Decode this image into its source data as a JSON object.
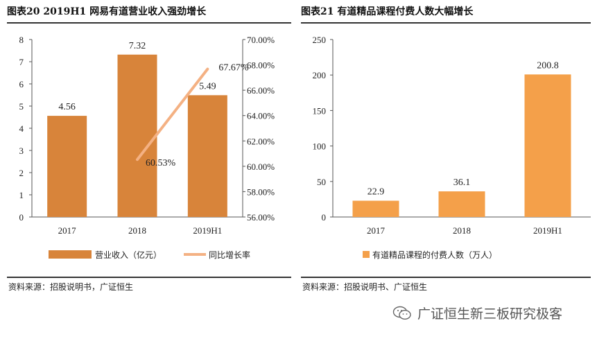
{
  "left_chart": {
    "title": "图表20 2019H1 网易有道营业收入强劲增长",
    "source": "资料来源：招股说明书，广证恒生"
  },
  "right_chart": {
    "title": "图表21 有道精品课程付费人数大幅增长",
    "source": "资料来源：招股说明书、广证恒生"
  },
  "watermark": {
    "text": "广证恒生新三板研究极客",
    "icon": "wechat-icon"
  },
  "colors": {
    "bar_left": "#D8843A",
    "line": "#F4B183",
    "bar_right": "#F4A04A"
  },
  "chart_data": [
    {
      "type": "bar",
      "categories": [
        "2017",
        "2018",
        "2019H1"
      ],
      "series": [
        {
          "name": "营业收入（亿元）",
          "values": [
            4.56,
            7.32,
            5.49
          ],
          "labels": [
            "4.56",
            "7.32",
            "5.49"
          ],
          "axis": "left"
        },
        {
          "name": "同比增长率",
          "type": "line",
          "values": [
            null,
            60.53,
            67.67
          ],
          "labels": [
            "",
            "60.53%",
            "67.67%"
          ],
          "axis": "right"
        }
      ],
      "y_left": {
        "ylim": [
          0,
          8
        ],
        "ticks": [
          "0",
          "1",
          "2",
          "3",
          "4",
          "5",
          "6",
          "7",
          "8"
        ]
      },
      "y_right": {
        "ylim": [
          56,
          70
        ],
        "ticks": [
          "56.00%",
          "58.00%",
          "60.00%",
          "62.00%",
          "64.00%",
          "66.00%",
          "68.00%",
          "70.00%"
        ]
      },
      "grid": false,
      "legend": "bottom"
    },
    {
      "type": "bar",
      "categories": [
        "2017",
        "2018",
        "2019H1"
      ],
      "series": [
        {
          "name": "有道精品课程的付费人数（万人）",
          "values": [
            22.9,
            36.1,
            200.8
          ],
          "labels": [
            "22.9",
            "36.1",
            "200.8"
          ]
        }
      ],
      "y_left": {
        "ylim": [
          0,
          250
        ],
        "ticks": [
          "0",
          "50",
          "100",
          "150",
          "200",
          "250"
        ]
      },
      "grid": false,
      "legend": "bottom"
    }
  ]
}
